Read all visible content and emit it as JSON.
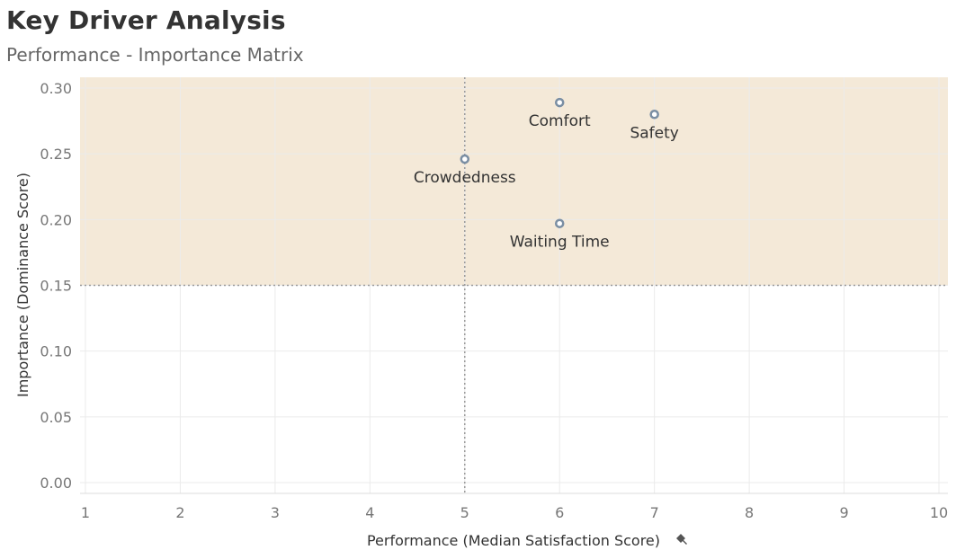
{
  "header": {
    "title": "Key Driver Analysis",
    "subtitle": "Performance - Importance Matrix"
  },
  "chart_data": {
    "type": "scatter",
    "title": "Key Driver Analysis",
    "subtitle": "Performance - Importance Matrix",
    "xlabel": "Performance (Median Satisfaction Score)",
    "xlabel_icon": "pin-icon",
    "ylabel": "Importance (Dominance Score)",
    "xlim": [
      1,
      10
    ],
    "ylim": [
      0,
      0.3
    ],
    "xticks": [
      "1",
      "2",
      "3",
      "4",
      "5",
      "6",
      "7",
      "8",
      "9",
      "10"
    ],
    "xtick_values": [
      1,
      2,
      3,
      4,
      5,
      6,
      7,
      8,
      9,
      10
    ],
    "yticks": [
      "0.00",
      "0.05",
      "0.10",
      "0.15",
      "0.20",
      "0.25",
      "0.30"
    ],
    "ytick_values": [
      0,
      0.05,
      0.1,
      0.15,
      0.2,
      0.25,
      0.3
    ],
    "grid": true,
    "reference_lines": {
      "x": 5,
      "y": 0.15
    },
    "highlight_region": {
      "y_min": 0.15,
      "color": "#f4e9d8"
    },
    "point_color": "#7a8ea3",
    "points": [
      {
        "label": "Comfort",
        "x": 6,
        "y": 0.289
      },
      {
        "label": "Safety",
        "x": 7,
        "y": 0.28
      },
      {
        "label": "Crowdedness",
        "x": 5,
        "y": 0.246
      },
      {
        "label": "Waiting Time",
        "x": 6,
        "y": 0.197
      }
    ]
  }
}
